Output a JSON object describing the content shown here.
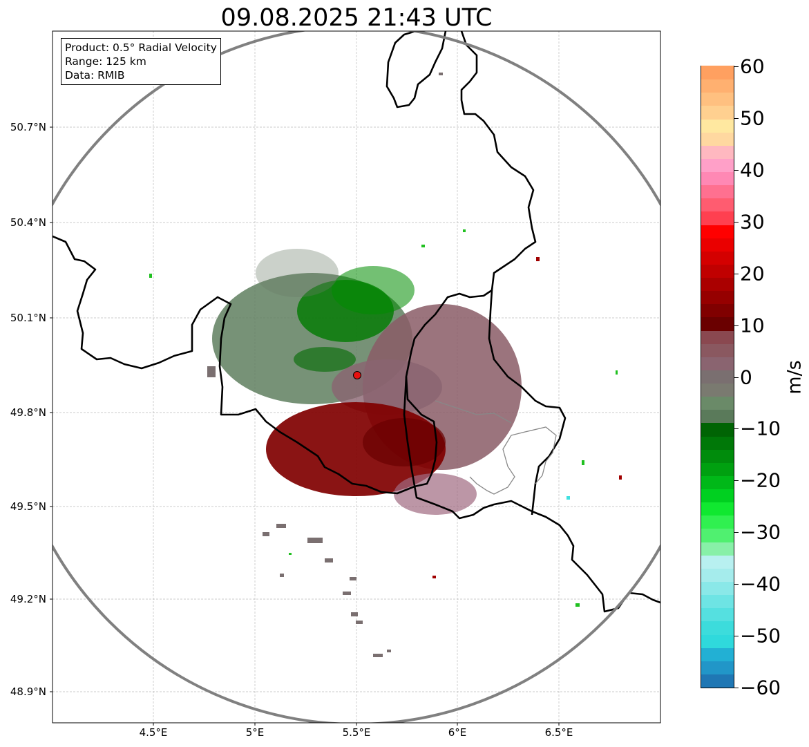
{
  "title": "09.08.2025 21:43 UTC",
  "info_box": {
    "product": "Product: 0.5° Radial Velocity",
    "range": "Range: 125 km",
    "data_source": "Data: RMIB"
  },
  "axes": {
    "lat_labels": [
      "50.7°N",
      "50.4°N",
      "50.1°N",
      "49.8°N",
      "49.5°N",
      "49.2°N",
      "48.9°N"
    ],
    "lon_labels": [
      "4.5°E",
      "5°E",
      "5.5°E",
      "6°E",
      "6.5°E"
    ]
  },
  "colorbar": {
    "unit": "m/s",
    "min": -60,
    "max": 60,
    "tick_labels": [
      "60",
      "50",
      "40",
      "30",
      "20",
      "10",
      "0",
      "−10",
      "−20",
      "−30",
      "−40",
      "−50",
      "−60"
    ],
    "tick_values": [
      60,
      50,
      40,
      30,
      20,
      10,
      0,
      -10,
      -20,
      -30,
      -40,
      -50,
      -60
    ],
    "colors": [
      "#1f77b4",
      "#2196c8",
      "#22b0d4",
      "#2fd9dc",
      "#3cdcdc",
      "#55e0e0",
      "#6ee4e4",
      "#8ae8e8",
      "#a5ecec",
      "#b8f0f0",
      "#88f0a8",
      "#50f070",
      "#30f050",
      "#10e830",
      "#00d020",
      "#00b818",
      "#00a010",
      "#008c0c",
      "#007808",
      "#006404",
      "#5a7a5a",
      "#6a8a68",
      "#7a7a70",
      "#7a6f70",
      "#8a6470",
      "#8a5860",
      "#8a4850",
      "#6a0000",
      "#800000",
      "#960000",
      "#aa0000",
      "#c00000",
      "#d40000",
      "#ea0000",
      "#ff0000",
      "#ff4050",
      "#ff5c70",
      "#ff7090",
      "#ff88b4",
      "#ffa0c8",
      "#ffb8c0",
      "#ffd8a0",
      "#ffe8a0",
      "#ffd090",
      "#ffc080",
      "#ffb070",
      "#ffa060"
    ]
  },
  "colors": {
    "range_ring": "#808080",
    "border": "#000000",
    "inner_border": "#808080",
    "radar_site": "#e81010",
    "grid": "#bbbbbb"
  }
}
